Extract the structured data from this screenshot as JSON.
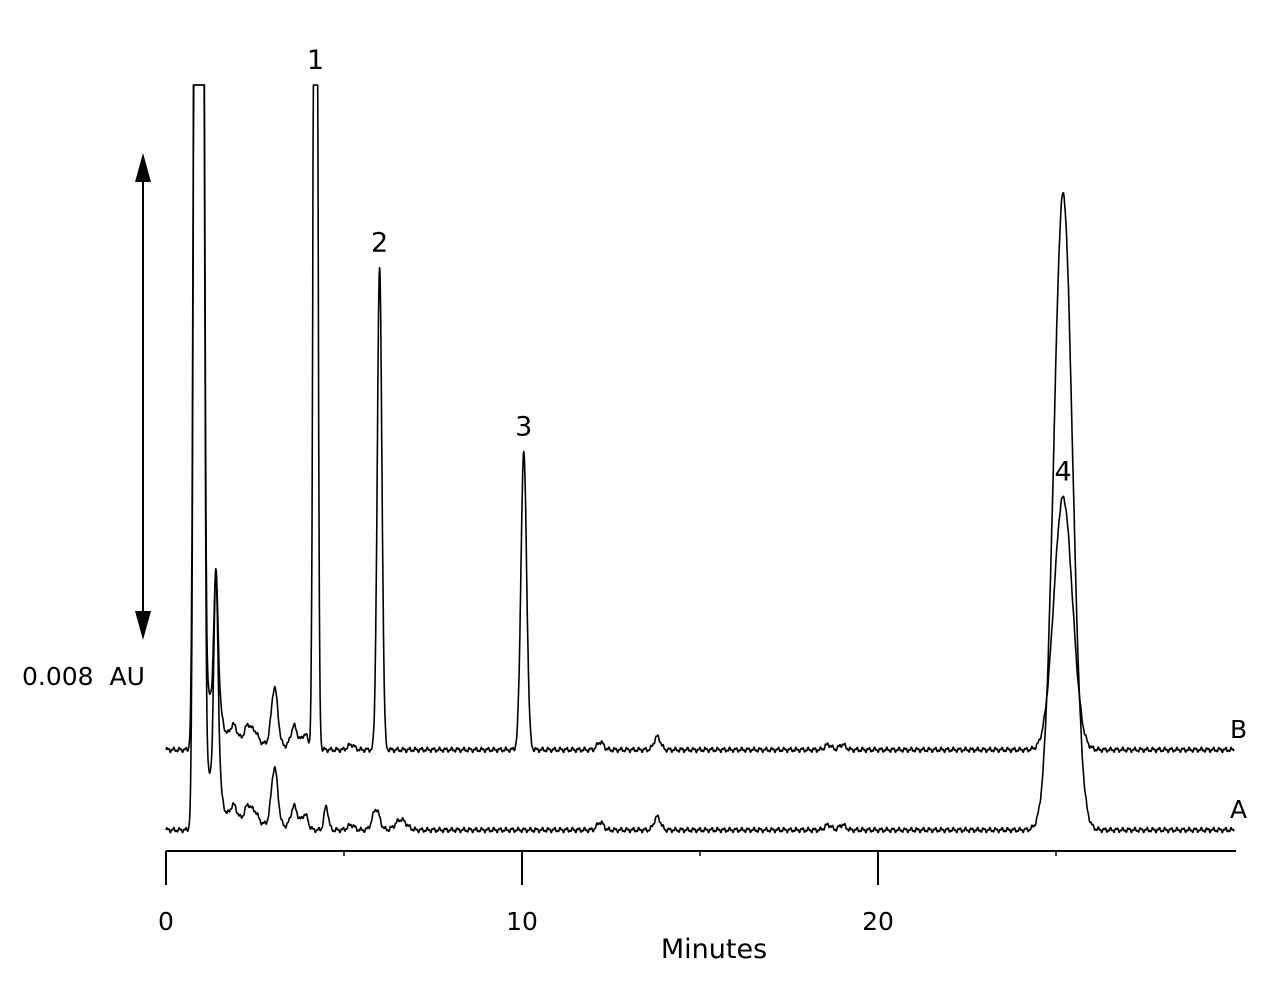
{
  "chart_data": {
    "type": "line",
    "xlabel": "Minutes",
    "ylabel": "",
    "xlim": [
      0,
      30
    ],
    "x_ticks": [
      {
        "value": 0,
        "label": "0"
      },
      {
        "value": 10,
        "label": "10"
      },
      {
        "value": 20,
        "label": "20"
      }
    ],
    "minor_x_ticks": [
      5,
      15,
      25
    ],
    "scale_bar": {
      "label": "0.008  AU",
      "value": 0.008,
      "unit": "AU"
    },
    "baseline_noise": [
      {
        "x": 1.2,
        "h": 0.0012
      },
      {
        "x": 1.5,
        "h": 0.0009
      },
      {
        "x": 1.9,
        "h": 0.0005
      },
      {
        "x": 2.3,
        "h": 0.0006
      },
      {
        "x": 2.5,
        "h": 0.0004
      },
      {
        "x": 3.05,
        "h": 0.0022
      },
      {
        "x": 3.6,
        "h": 0.0008
      },
      {
        "x": 3.9,
        "h": 0.0005
      },
      {
        "x": 5.2,
        "h": 0.0002
      },
      {
        "x": 12.2,
        "h": 0.0003
      },
      {
        "x": 13.8,
        "h": 0.0005
      },
      {
        "x": 18.6,
        "h": 0.0002
      },
      {
        "x": 19.0,
        "h": 0.0002
      }
    ],
    "series": [
      {
        "name": "A",
        "label": "A",
        "offset": 0,
        "void_peaks": [
          {
            "x": 0.85,
            "h": 0.06,
            "w": 0.06
          },
          {
            "x": 1.0,
            "h": 0.06,
            "w": 0.06
          },
          {
            "x": 1.4,
            "h": 0.0085,
            "w": 0.06
          }
        ],
        "peaks": [
          {
            "x": 4.5,
            "h": 0.0009,
            "w": 0.06
          },
          {
            "x": 5.9,
            "h": 0.0008,
            "w": 0.1
          },
          {
            "x": 6.6,
            "h": 0.0004,
            "w": 0.15
          },
          {
            "x": 25.2,
            "h": 0.0242,
            "w": 0.26
          }
        ]
      },
      {
        "name": "B",
        "label": "B",
        "offset": 0.00305,
        "void_peaks": [
          {
            "x": 0.85,
            "h": 0.06,
            "w": 0.06
          },
          {
            "x": 1.0,
            "h": 0.06,
            "w": 0.06
          },
          {
            "x": 1.4,
            "h": 0.0055,
            "w": 0.06
          }
        ],
        "peaks": [
          {
            "x": 4.2,
            "h": 0.06,
            "w": 0.05,
            "label": "1"
          },
          {
            "x": 6.0,
            "h": 0.0183,
            "w": 0.065,
            "label": "2"
          },
          {
            "x": 10.05,
            "h": 0.0113,
            "w": 0.08,
            "label": "3"
          },
          {
            "x": 25.2,
            "h": 0.0096,
            "w": 0.26,
            "label": "4"
          }
        ]
      }
    ]
  }
}
